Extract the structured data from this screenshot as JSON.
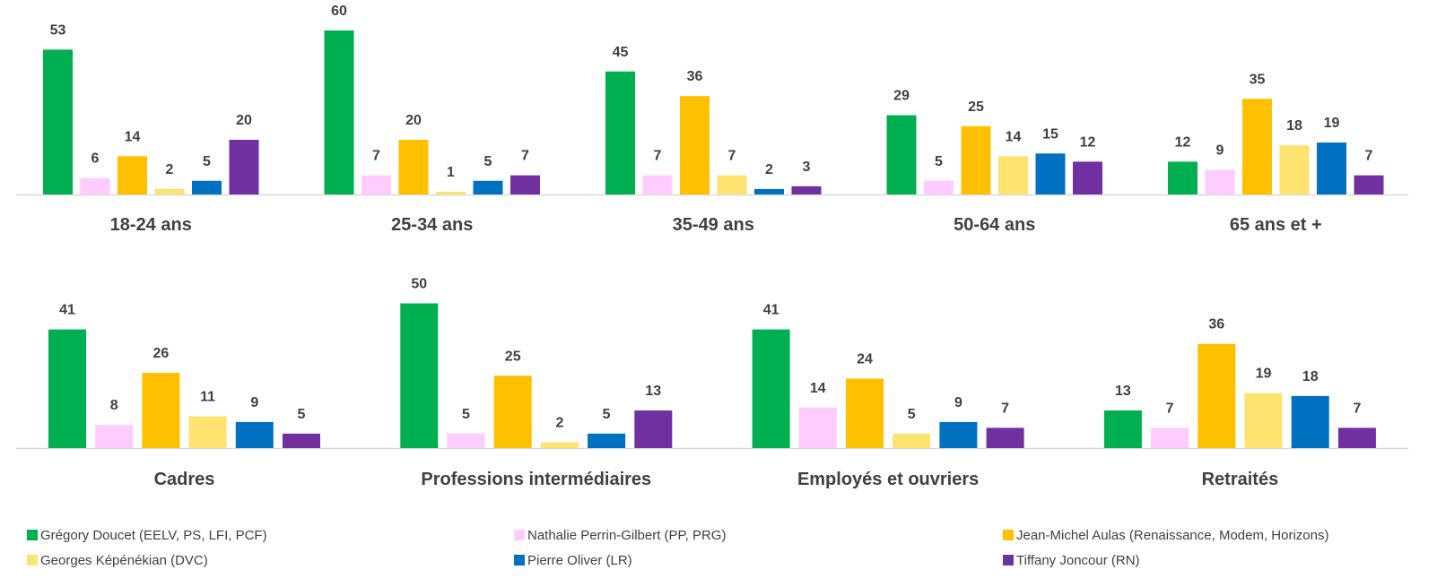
{
  "chart_data": {
    "type": "bar",
    "series": [
      {
        "name": "Grégory Doucet (EELV, PS, LFI, PCF)",
        "color": "#00B050"
      },
      {
        "name": "Nathalie Perrin-Gilbert (PP, PRG)",
        "color": "#FFCCFF"
      },
      {
        "name": "Jean-Michel Aulas (Renaissance, Modem, Horizons)",
        "color": "#FFC000"
      },
      {
        "name": "Georges Képénékian (DVC)",
        "color": "#FFE371"
      },
      {
        "name": "Pierre Oliver (LR)",
        "color": "#0070C0"
      },
      {
        "name": "Tiffany Joncour (RN)",
        "color": "#7030A0"
      }
    ],
    "panels": [
      {
        "groups": [
          {
            "label": "18-24 ans",
            "values": [
              53,
              6,
              14,
              2,
              5,
              20
            ]
          },
          {
            "label": "25-34 ans",
            "values": [
              60,
              7,
              20,
              1,
              5,
              7
            ]
          },
          {
            "label": "35-49 ans",
            "values": [
              45,
              7,
              36,
              7,
              2,
              3
            ]
          },
          {
            "label": "50-64 ans",
            "values": [
              29,
              5,
              25,
              14,
              15,
              12
            ]
          },
          {
            "label": "65 ans et +",
            "values": [
              12,
              9,
              35,
              18,
              19,
              7
            ]
          }
        ]
      },
      {
        "groups": [
          {
            "label": "Cadres",
            "values": [
              41,
              8,
              26,
              11,
              9,
              5
            ]
          },
          {
            "label": "Professions intermédiaires",
            "values": [
              50,
              5,
              25,
              2,
              5,
              13
            ]
          },
          {
            "label": "Employés et ouvriers",
            "values": [
              41,
              14,
              24,
              5,
              9,
              7
            ]
          },
          {
            "label": "Retraités",
            "values": [
              13,
              7,
              36,
              19,
              18,
              7
            ]
          }
        ]
      }
    ],
    "legend_position": "bottom",
    "grid": false
  }
}
